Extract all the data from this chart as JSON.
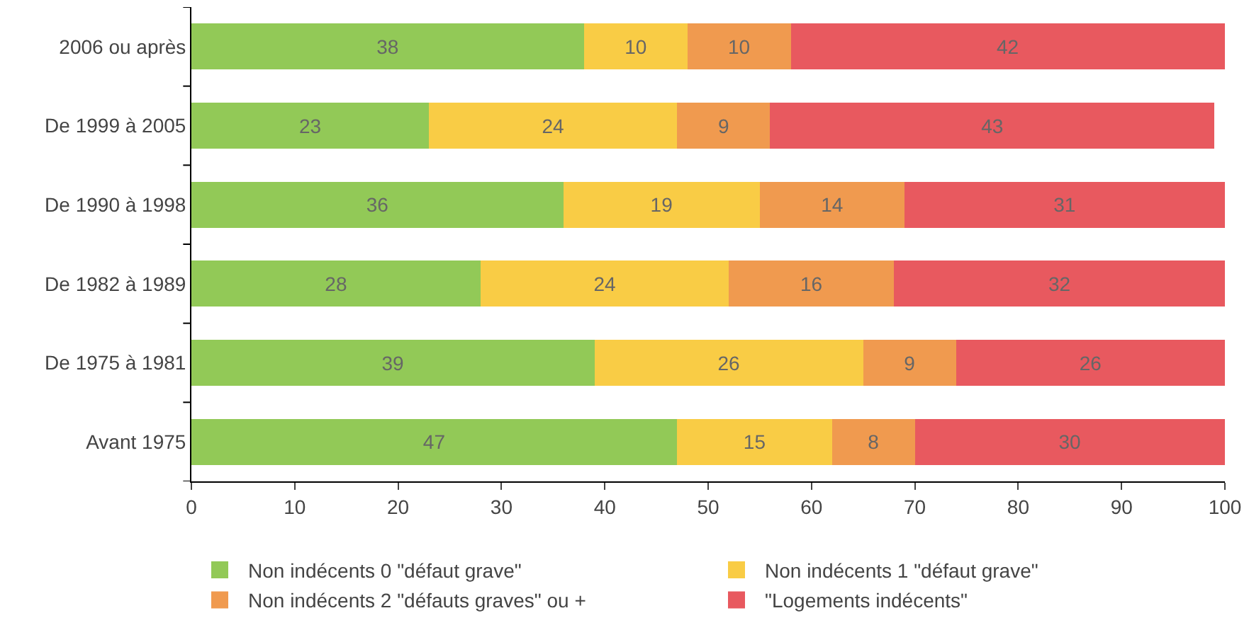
{
  "chart_data": {
    "type": "bar",
    "orientation": "horizontal",
    "stacked": true,
    "data_labels": true,
    "grid": false,
    "legend": "bottom",
    "categories": [
      "2006 ou après",
      "De 1999 à 2005",
      "De 1990 à 1998",
      "De 1982 à 1989",
      "De 1975 à 1981",
      "Avant 1975"
    ],
    "xlim": [
      0,
      100
    ],
    "xticks": [
      0,
      10,
      20,
      30,
      40,
      50,
      60,
      70,
      80,
      90,
      100
    ],
    "series": [
      {
        "name": "Non indécents 0 \"défaut grave\"",
        "color": "#92c957",
        "values": [
          38,
          23,
          36,
          28,
          39,
          47
        ]
      },
      {
        "name": "Non indécents 1 \"défaut grave\"",
        "color": "#f9cc45",
        "values": [
          10,
          24,
          19,
          24,
          26,
          15
        ]
      },
      {
        "name": "Non indécents 2 \"défauts graves\" ou +",
        "color": "#f09a4f",
        "values": [
          10,
          9,
          14,
          16,
          9,
          8
        ]
      },
      {
        "name": "\"Logements indécents\"",
        "color": "#e8595f",
        "values": [
          42,
          43,
          31,
          32,
          26,
          30
        ]
      }
    ]
  }
}
